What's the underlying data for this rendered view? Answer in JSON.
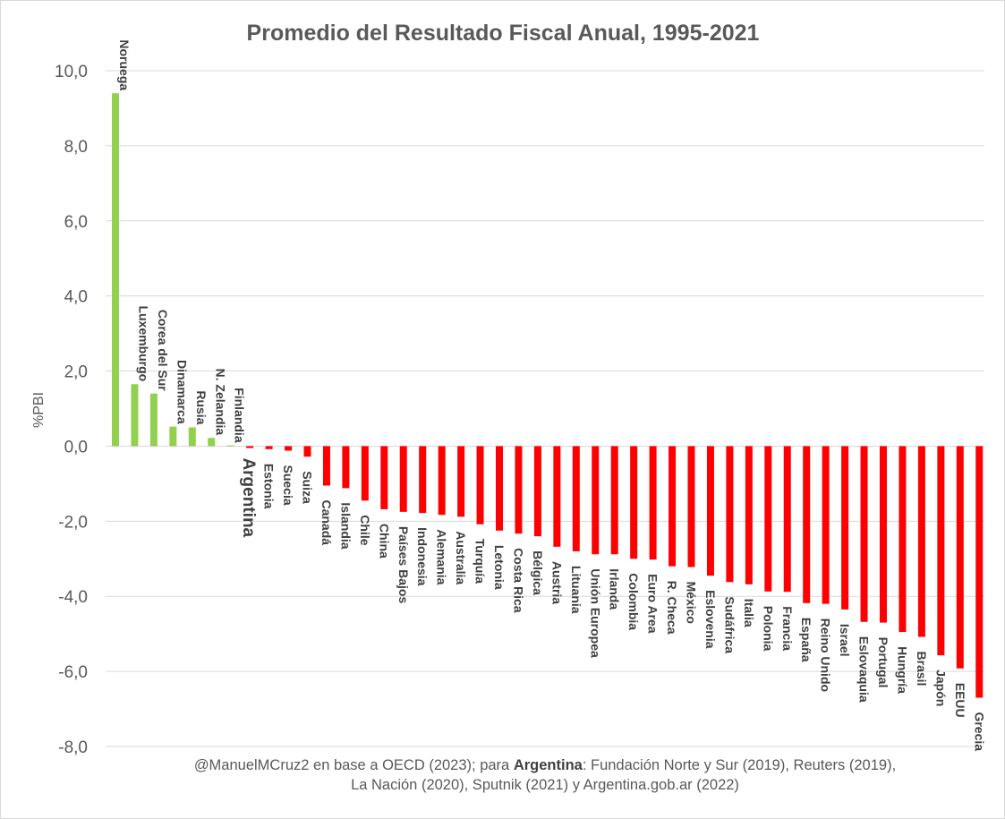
{
  "chart_data": {
    "type": "bar",
    "title": "Promedio del Resultado Fiscal Anual, 1995-2021",
    "xlabel": "",
    "ylabel": "%PBI",
    "ylim": [
      -8,
      10
    ],
    "yticks": [
      "10,0",
      "8,0",
      "6,0",
      "4,0",
      "2,0",
      "0,0",
      "-2,0",
      "-4,0",
      "-6,0",
      "-8,0"
    ],
    "grid": true,
    "categories": [
      "Noruega",
      "Luxemburgo",
      "Corea del Sur",
      "Dinamarca",
      "Rusia",
      "N. Zelandia",
      "Finlandia",
      "Argentina",
      "Estonia",
      "Suecia",
      "Suiza",
      "Canadá",
      "Islandia",
      "Chile",
      "China",
      "Países Bajos",
      "Indonesia",
      "Alemania",
      "Australia",
      "Turquía",
      "Letonia",
      "Costa Rica",
      "Bélgica",
      "Austria",
      "Lituania",
      "Unión Europea",
      "Irlanda",
      "Colombia",
      "Euro Area",
      "R. Checa",
      "México",
      "Eslovenia",
      "Sudáfrica",
      "Italia",
      "Polonia",
      "Francia",
      "España",
      "Reino Unido",
      "Israel",
      "Eslovaquia",
      "Portugal",
      "Hungría",
      "Brasil",
      "Japón",
      "EEUU",
      "Grecia"
    ],
    "values": [
      9.4,
      1.65,
      1.4,
      0.52,
      0.5,
      0.22,
      0.02,
      -0.05,
      -0.08,
      -0.12,
      -0.28,
      -1.05,
      -1.12,
      -1.45,
      -1.68,
      -1.75,
      -1.78,
      -1.83,
      -1.88,
      -2.08,
      -2.25,
      -2.33,
      -2.4,
      -2.68,
      -2.8,
      -2.88,
      -2.88,
      -3.0,
      -3.02,
      -3.2,
      -3.22,
      -3.45,
      -3.62,
      -3.68,
      -3.87,
      -3.88,
      -4.18,
      -4.2,
      -4.35,
      -4.68,
      -4.7,
      -4.95,
      -5.08,
      -5.57,
      -5.92,
      -6.7
    ],
    "highlight": "Argentina",
    "colors": {
      "positive": "#92d050",
      "negative": "#ff0000",
      "grid": "#d9d9d9",
      "text": "#595959"
    }
  },
  "source": {
    "line1_a": "@ManuelMCruz2 en base a OECD (2023); para ",
    "line1_bold": "Argentina",
    "line1_b": ": Fundación Norte y Sur (2019), Reuters (2019),",
    "line2": "La Nación (2020), Sputnik (2021) y Argentina.gob.ar (2022)"
  }
}
